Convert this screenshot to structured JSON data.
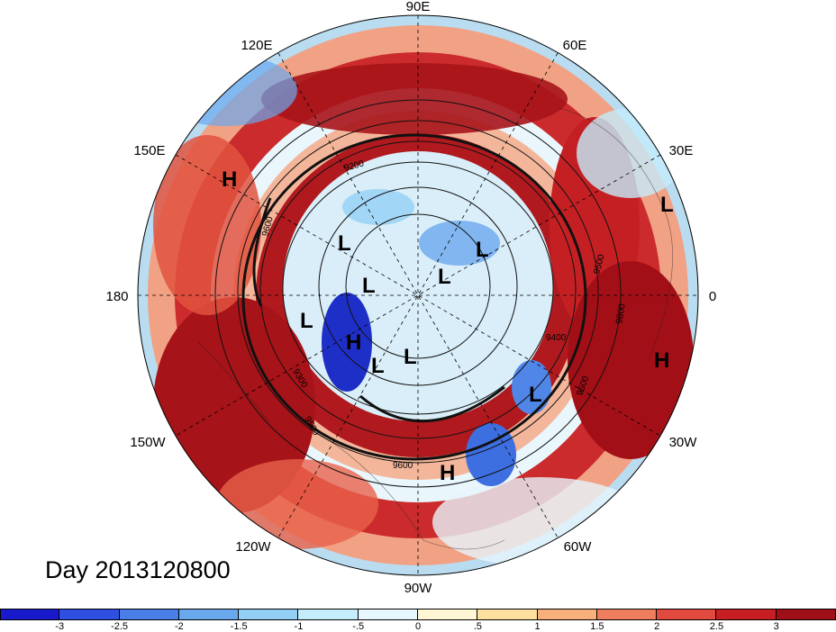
{
  "title": "Day 2013120800",
  "map": {
    "projection": "polar-stereographic-north",
    "lon_labels": [
      "90E",
      "60E",
      "30E",
      "0",
      "30W",
      "60W",
      "90W",
      "120W",
      "150W",
      "180",
      "150E",
      "120E"
    ],
    "high_low_labels": [
      "H",
      "L",
      "L",
      "L",
      "L",
      "L",
      "L",
      "H",
      "L",
      "L",
      "H",
      "L",
      "H",
      "H"
    ],
    "contour_labels": [
      "9200",
      "9400",
      "9500",
      "9600",
      "9800",
      "9300",
      "9500",
      "9400",
      "9500",
      "9600",
      "9700"
    ]
  },
  "colorbar": {
    "colors": [
      "#1a1acd",
      "#2f4fe0",
      "#4a7fe8",
      "#6aa8ee",
      "#93cff5",
      "#c4ecfb",
      "#e6f8fd",
      "#fff6d6",
      "#fde0a0",
      "#f7b07a",
      "#ef7e5e",
      "#e14a3f",
      "#c61e22",
      "#9e0f18"
    ],
    "tick_labels": [
      "-3",
      "-2.5",
      "-2",
      "-1.5",
      "-1",
      "-.5",
      "0",
      ".5",
      "1",
      "1.5",
      "2",
      "2.5",
      "3"
    ]
  }
}
